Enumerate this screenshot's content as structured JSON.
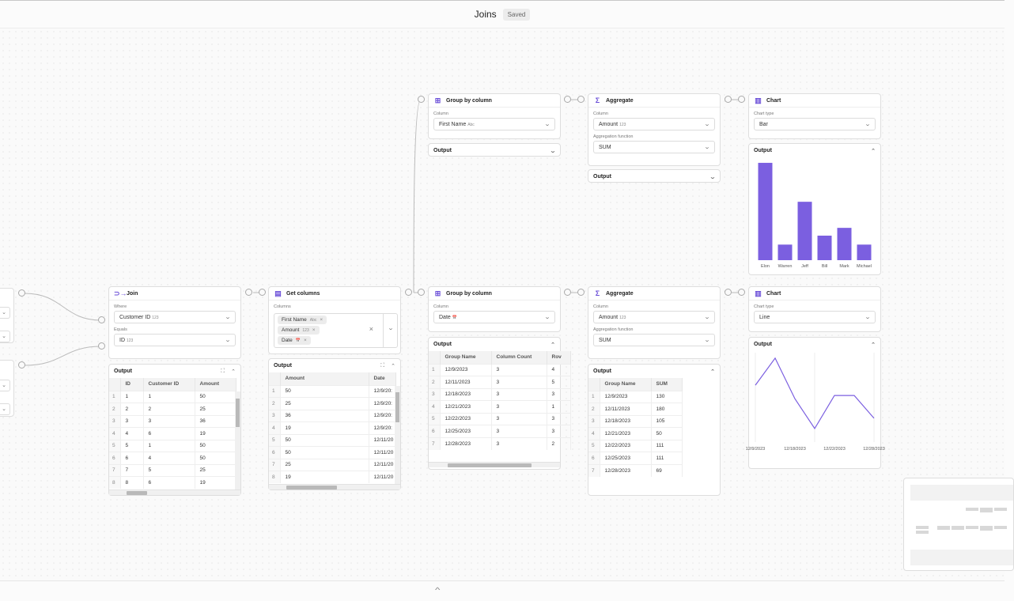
{
  "header": {
    "title": "Joins",
    "status": "Saved"
  },
  "join": {
    "title": "Join",
    "where_label": "Where",
    "where_value": "Customer ID",
    "where_type": "123",
    "equals_label": "Equals",
    "equals_value": "ID",
    "equals_type": "123",
    "output_label": "Output",
    "columns": [
      "ID",
      "Customer ID",
      "Amount"
    ],
    "rows": [
      [
        "1",
        "1",
        "1",
        "50"
      ],
      [
        "2",
        "2",
        "2",
        "25"
      ],
      [
        "3",
        "3",
        "3",
        "36"
      ],
      [
        "4",
        "4",
        "6",
        "19"
      ],
      [
        "5",
        "5",
        "1",
        "50"
      ],
      [
        "6",
        "6",
        "4",
        "50"
      ],
      [
        "7",
        "7",
        "5",
        "25"
      ],
      [
        "8",
        "8",
        "6",
        "19"
      ]
    ]
  },
  "getcols": {
    "title": "Get columns",
    "columns_label": "Columns",
    "chips": [
      {
        "name": "First Name",
        "type": "Abc"
      },
      {
        "name": "Amount",
        "type": "123"
      },
      {
        "name": "Date",
        "type": "📅"
      }
    ],
    "output_label": "Output",
    "columns": [
      "Amount",
      "Date"
    ],
    "rows": [
      [
        "1",
        "50",
        "12/9/20:"
      ],
      [
        "2",
        "25",
        "12/9/20:"
      ],
      [
        "3",
        "36",
        "12/9/20:"
      ],
      [
        "4",
        "19",
        "12/9/20:"
      ],
      [
        "5",
        "50",
        "12/11/20"
      ],
      [
        "6",
        "50",
        "12/11/20"
      ],
      [
        "7",
        "25",
        "12/11/20"
      ],
      [
        "8",
        "19",
        "12/11/20"
      ]
    ]
  },
  "group1": {
    "title": "Group by column",
    "column_label": "Column",
    "column_value": "First Name",
    "column_type": "Abc",
    "output_label": "Output"
  },
  "agg1": {
    "title": "Aggregate",
    "column_label": "Column",
    "column_value": "Amount",
    "column_type": "123",
    "func_label": "Aggregation function",
    "func_value": "SUM",
    "output_label": "Output"
  },
  "chart1": {
    "title": "Chart",
    "type_label": "Chart type",
    "type_value": "Bar",
    "output_label": "Output"
  },
  "group2": {
    "title": "Group by column",
    "column_label": "Column",
    "column_value": "Date",
    "column_type": "📅",
    "output_label": "Output",
    "columns": [
      "Group Name",
      "Column Count",
      "Rov"
    ],
    "rows": [
      [
        "1",
        "12/9/2023",
        "3",
        "4"
      ],
      [
        "2",
        "12/11/2023",
        "3",
        "5"
      ],
      [
        "3",
        "12/18/2023",
        "3",
        "3"
      ],
      [
        "4",
        "12/21/2023",
        "3",
        "1"
      ],
      [
        "5",
        "12/22/2023",
        "3",
        "3"
      ],
      [
        "6",
        "12/25/2023",
        "3",
        "3"
      ],
      [
        "7",
        "12/28/2023",
        "3",
        "2"
      ]
    ]
  },
  "agg2": {
    "title": "Aggregate",
    "column_label": "Column",
    "column_value": "Amount",
    "column_type": "123",
    "func_label": "Aggregation function",
    "func_value": "SUM",
    "output_label": "Output",
    "columns": [
      "Group Name",
      "SUM"
    ],
    "rows": [
      [
        "1",
        "12/9/2023",
        "130"
      ],
      [
        "2",
        "12/11/2023",
        "180"
      ],
      [
        "3",
        "12/18/2023",
        "105"
      ],
      [
        "4",
        "12/21/2023",
        "50"
      ],
      [
        "5",
        "12/22/2023",
        "111"
      ],
      [
        "6",
        "12/25/2023",
        "111"
      ],
      [
        "7",
        "12/28/2023",
        "69"
      ]
    ]
  },
  "chart2": {
    "title": "Chart",
    "type_label": "Chart type",
    "type_value": "Line",
    "output_label": "Output"
  },
  "colors": {
    "accent": "#7b5fe0"
  },
  "chart_data": [
    {
      "type": "bar",
      "categories": [
        "Elon",
        "Warren",
        "Jeff",
        "Bill",
        "Mark",
        "Michael"
      ],
      "values": [
        250,
        40,
        150,
        63,
        83,
        40
      ],
      "ylim": [
        0,
        260
      ]
    },
    {
      "type": "line",
      "x": [
        "12/9/2023",
        "12/11/2023",
        "12/18/2023",
        "12/21/2023",
        "12/22/2023",
        "12/25/2023",
        "12/28/2023"
      ],
      "x_tick_labels": [
        "12/9/2023",
        "12/18/2023",
        "12/22/2023",
        "12/28/2023"
      ],
      "values": [
        130,
        180,
        105,
        50,
        111,
        111,
        69
      ],
      "ylim": [
        25,
        190
      ]
    }
  ]
}
